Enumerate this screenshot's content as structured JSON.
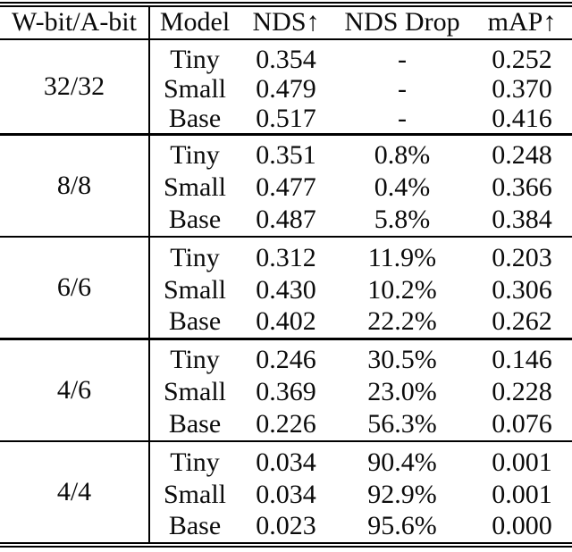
{
  "table": {
    "columns": [
      "W-bit/A-bit",
      "Model",
      "NDS↑",
      "NDS Drop",
      "mAP↑"
    ],
    "groups": [
      {
        "bits": "32/32",
        "rows": [
          [
            "Tiny",
            "0.354",
            "-",
            "0.252"
          ],
          [
            "Small",
            "0.479",
            "-",
            "0.370"
          ],
          [
            "Base",
            "0.517",
            "-",
            "0.416"
          ]
        ]
      },
      {
        "bits": "8/8",
        "rows": [
          [
            "Tiny",
            "0.351",
            "0.8%",
            "0.248"
          ],
          [
            "Small",
            "0.477",
            "0.4%",
            "0.366"
          ],
          [
            "Base",
            "0.487",
            "5.8%",
            "0.384"
          ]
        ]
      },
      {
        "bits": "6/6",
        "rows": [
          [
            "Tiny",
            "0.312",
            "11.9%",
            "0.203"
          ],
          [
            "Small",
            "0.430",
            "10.2%",
            "0.306"
          ],
          [
            "Base",
            "0.402",
            "22.2%",
            "0.262"
          ]
        ]
      },
      {
        "bits": "4/6",
        "rows": [
          [
            "Tiny",
            "0.246",
            "30.5%",
            "0.146"
          ],
          [
            "Small",
            "0.369",
            "23.0%",
            "0.228"
          ],
          [
            "Base",
            "0.226",
            "56.3%",
            "0.076"
          ]
        ]
      },
      {
        "bits": "4/4",
        "rows": [
          [
            "Tiny",
            "0.034",
            "90.4%",
            "0.001"
          ],
          [
            "Small",
            "0.034",
            "92.9%",
            "0.001"
          ],
          [
            "Base",
            "0.023",
            "95.6%",
            "0.000"
          ]
        ]
      }
    ]
  },
  "colors": {
    "text": "#0b0b0b",
    "rule": "#000000",
    "background": "#ffffff"
  }
}
